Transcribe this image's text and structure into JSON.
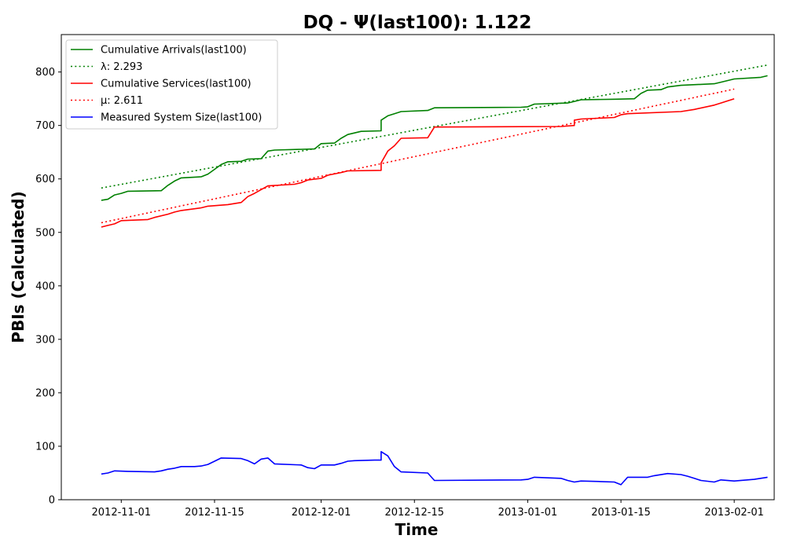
{
  "chart_data": {
    "type": "line",
    "title": "DQ -  Ψ(last100): 1.122",
    "xlabel": "Time",
    "ylabel": "PBIs (Calculated)",
    "ylim": [
      0,
      870
    ],
    "xlim": [
      "2012-10-23",
      "2013-02-07"
    ],
    "yticks": [
      0,
      100,
      200,
      300,
      400,
      500,
      600,
      700,
      800
    ],
    "xticks": [
      "2012-11-01",
      "2012-11-15",
      "2012-12-01",
      "2012-12-15",
      "2013-01-01",
      "2013-01-15",
      "2013-02-01"
    ],
    "grid": false,
    "legend_position": "top-left",
    "series": [
      {
        "name": "Cumulative Arrivals(last100)",
        "color": "#008000",
        "style": "solid",
        "points": [
          [
            "2012-10-29",
            560
          ],
          [
            "2012-10-30",
            562
          ],
          [
            "2012-10-31",
            570
          ],
          [
            "2012-11-01",
            573
          ],
          [
            "2012-11-02",
            577
          ],
          [
            "2012-11-07",
            578
          ],
          [
            "2012-11-08",
            588
          ],
          [
            "2012-11-09",
            596
          ],
          [
            "2012-11-10",
            602
          ],
          [
            "2012-11-13",
            604
          ],
          [
            "2012-11-14",
            609
          ],
          [
            "2012-11-15",
            618
          ],
          [
            "2012-11-16",
            627
          ],
          [
            "2012-11-17",
            632
          ],
          [
            "2012-11-19",
            633
          ],
          [
            "2012-11-20",
            637
          ],
          [
            "2012-11-22",
            638
          ],
          [
            "2012-11-23",
            652
          ],
          [
            "2012-11-24",
            654
          ],
          [
            "2012-11-30",
            656
          ],
          [
            "2012-12-01",
            666
          ],
          [
            "2012-12-03",
            667
          ],
          [
            "2012-12-04",
            676
          ],
          [
            "2012-12-05",
            683
          ],
          [
            "2012-12-06",
            686
          ],
          [
            "2012-12-07",
            689
          ],
          [
            "2012-12-10",
            690
          ],
          [
            "2012-12-10",
            710
          ],
          [
            "2012-12-11",
            718
          ],
          [
            "2012-12-12",
            722
          ],
          [
            "2012-12-13",
            726
          ],
          [
            "2012-12-17",
            728
          ],
          [
            "2012-12-18",
            733
          ],
          [
            "2012-12-31",
            734
          ],
          [
            "2013-01-01",
            735
          ],
          [
            "2013-01-02",
            740
          ],
          [
            "2013-01-07",
            742
          ],
          [
            "2013-01-08",
            745
          ],
          [
            "2013-01-09",
            748
          ],
          [
            "2013-01-14",
            749
          ],
          [
            "2013-01-17",
            750
          ],
          [
            "2013-01-18",
            760
          ],
          [
            "2013-01-19",
            766
          ],
          [
            "2013-01-21",
            767
          ],
          [
            "2013-01-22",
            772
          ],
          [
            "2013-01-24",
            775
          ],
          [
            "2013-01-29",
            778
          ],
          [
            "2013-01-30",
            781
          ],
          [
            "2013-02-01",
            787
          ],
          [
            "2013-02-05",
            790
          ],
          [
            "2013-02-06",
            793
          ]
        ]
      },
      {
        "name": "λ: 2.293",
        "color": "#008000",
        "style": "dotted",
        "points": [
          [
            "2012-10-29",
            583
          ],
          [
            "2013-02-06",
            813
          ]
        ]
      },
      {
        "name": "Cumulative Services(last100)",
        "color": "#ff0000",
        "style": "solid",
        "points": [
          [
            "2012-10-29",
            510
          ],
          [
            "2012-10-30",
            513
          ],
          [
            "2012-10-31",
            516
          ],
          [
            "2012-11-01",
            522
          ],
          [
            "2012-11-05",
            524
          ],
          [
            "2012-11-06",
            528
          ],
          [
            "2012-11-08",
            534
          ],
          [
            "2012-11-09",
            538
          ],
          [
            "2012-11-10",
            541
          ],
          [
            "2012-11-13",
            546
          ],
          [
            "2012-11-14",
            549
          ],
          [
            "2012-11-17",
            552
          ],
          [
            "2012-11-19",
            556
          ],
          [
            "2012-11-20",
            567
          ],
          [
            "2012-11-21",
            573
          ],
          [
            "2012-11-22",
            580
          ],
          [
            "2012-11-23",
            587
          ],
          [
            "2012-11-27",
            590
          ],
          [
            "2012-11-28",
            593
          ],
          [
            "2012-11-29",
            598
          ],
          [
            "2012-12-01",
            601
          ],
          [
            "2012-12-02",
            607
          ],
          [
            "2012-12-04",
            612
          ],
          [
            "2012-12-05",
            615
          ],
          [
            "2012-12-10",
            616
          ],
          [
            "2012-12-10",
            630
          ],
          [
            "2012-12-11",
            652
          ],
          [
            "2012-12-12",
            662
          ],
          [
            "2012-12-13",
            676
          ],
          [
            "2012-12-17",
            677
          ],
          [
            "2012-12-18",
            697
          ],
          [
            "2013-01-06",
            698
          ],
          [
            "2013-01-08",
            700
          ],
          [
            "2013-01-08",
            710
          ],
          [
            "2013-01-09",
            712
          ],
          [
            "2013-01-14",
            715
          ],
          [
            "2013-01-15",
            720
          ],
          [
            "2013-01-16",
            722
          ],
          [
            "2013-01-24",
            726
          ],
          [
            "2013-01-26",
            730
          ],
          [
            "2013-01-29",
            738
          ],
          [
            "2013-01-30",
            742
          ],
          [
            "2013-02-01",
            750
          ]
        ]
      },
      {
        "name": "μ: 2.611",
        "color": "#ff0000",
        "style": "dotted",
        "points": [
          [
            "2012-10-29",
            518
          ],
          [
            "2013-02-01",
            768
          ]
        ]
      },
      {
        "name": "Measured System Size(last100)",
        "color": "#0000ff",
        "style": "solid",
        "points": [
          [
            "2012-10-29",
            48
          ],
          [
            "2012-10-30",
            50
          ],
          [
            "2012-10-31",
            54
          ],
          [
            "2012-11-02",
            53
          ],
          [
            "2012-11-06",
            52
          ],
          [
            "2012-11-07",
            54
          ],
          [
            "2012-11-08",
            57
          ],
          [
            "2012-11-09",
            59
          ],
          [
            "2012-11-10",
            62
          ],
          [
            "2012-11-12",
            62
          ],
          [
            "2012-11-13",
            63
          ],
          [
            "2012-11-14",
            66
          ],
          [
            "2012-11-15",
            72
          ],
          [
            "2012-11-16",
            78
          ],
          [
            "2012-11-19",
            77
          ],
          [
            "2012-11-20",
            73
          ],
          [
            "2012-11-21",
            67
          ],
          [
            "2012-11-22",
            76
          ],
          [
            "2012-11-23",
            78
          ],
          [
            "2012-11-24",
            67
          ],
          [
            "2012-11-28",
            65
          ],
          [
            "2012-11-29",
            60
          ],
          [
            "2012-11-30",
            58
          ],
          [
            "2012-12-01",
            65
          ],
          [
            "2012-12-03",
            65
          ],
          [
            "2012-12-04",
            68
          ],
          [
            "2012-12-05",
            72
          ],
          [
            "2012-12-06",
            73
          ],
          [
            "2012-12-09",
            74
          ],
          [
            "2012-12-10",
            74
          ],
          [
            "2012-12-10",
            90
          ],
          [
            "2012-12-11",
            82
          ],
          [
            "2012-12-12",
            62
          ],
          [
            "2012-12-13",
            52
          ],
          [
            "2012-12-17",
            50
          ],
          [
            "2012-12-18",
            36
          ],
          [
            "2012-12-31",
            37
          ],
          [
            "2013-01-01",
            38
          ],
          [
            "2013-01-02",
            42
          ],
          [
            "2013-01-06",
            40
          ],
          [
            "2013-01-07",
            36
          ],
          [
            "2013-01-08",
            33
          ],
          [
            "2013-01-09",
            35
          ],
          [
            "2013-01-12",
            34
          ],
          [
            "2013-01-14",
            33
          ],
          [
            "2013-01-15",
            28
          ],
          [
            "2013-01-16",
            42
          ],
          [
            "2013-01-19",
            42
          ],
          [
            "2013-01-20",
            45
          ],
          [
            "2013-01-22",
            49
          ],
          [
            "2013-01-24",
            47
          ],
          [
            "2013-01-25",
            44
          ],
          [
            "2013-01-26",
            40
          ],
          [
            "2013-01-27",
            36
          ],
          [
            "2013-01-29",
            33
          ],
          [
            "2013-01-30",
            37
          ],
          [
            "2013-02-01",
            35
          ],
          [
            "2013-02-04",
            38
          ],
          [
            "2013-02-06",
            42
          ]
        ]
      }
    ]
  }
}
